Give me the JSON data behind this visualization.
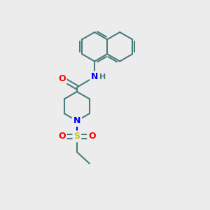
{
  "background_color": "#ececec",
  "bond_color": "#4a7c7c",
  "bond_width": 1.5,
  "atom_colors": {
    "O": "#ff0000",
    "N": "#0000ff",
    "S": "#cccc00",
    "H": "#4a7c7c"
  },
  "font_size_atom": 9,
  "font_size_H": 8,
  "xlim": [
    0,
    10
  ],
  "ylim": [
    0,
    10
  ]
}
